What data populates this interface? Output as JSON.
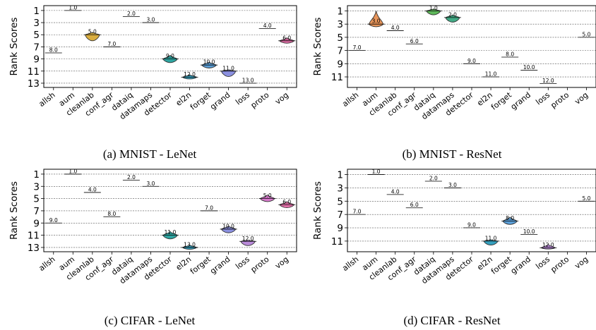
{
  "chart_data": [
    {
      "type": "violin",
      "caption": "(a) MNIST - LeNet",
      "ylabel": "Rank Scores",
      "y_ticks": [
        "1",
        "3",
        "5",
        "7",
        "9",
        "11",
        "13"
      ],
      "ylim": [
        0.2,
        13.7
      ],
      "y_inverted": true,
      "grid": true,
      "categories": [
        "allsh",
        "aum",
        "cleanlab",
        "conf_agr",
        "dataiq",
        "datamaps",
        "detector",
        "el2n",
        "forget",
        "grand",
        "loss",
        "proto",
        "vog"
      ],
      "values": [
        8.0,
        1.0,
        5.0,
        7.0,
        2.0,
        3.0,
        9.0,
        12.0,
        10.0,
        11.0,
        13.0,
        4.0,
        6.0
      ],
      "data_labels": [
        "8.0",
        "1.0",
        "5.0",
        "7.0",
        "2.0",
        "3.0",
        "9.0",
        "12.0",
        "10.0",
        "11.0",
        "13.0",
        "4.0",
        "6.0"
      ],
      "spread": [
        [
          0,
          0
        ],
        [
          0,
          0
        ],
        [
          0.4,
          1.0
        ],
        [
          0,
          0
        ],
        [
          0,
          0
        ],
        [
          0,
          0
        ],
        [
          0.6,
          0.6
        ],
        [
          0.4,
          0.3
        ],
        [
          0.5,
          0.5
        ],
        [
          0.2,
          0.9
        ],
        [
          0,
          0
        ],
        [
          0,
          0
        ],
        [
          0.5,
          0.4
        ]
      ]
    },
    {
      "type": "violin",
      "caption": "(b) MNIST - ResNet",
      "ylabel": "Rank Scores",
      "y_ticks": [
        "1",
        "3",
        "5",
        "7",
        "9",
        "11"
      ],
      "ylim": [
        0.2,
        12.6
      ],
      "y_inverted": true,
      "grid": true,
      "categories": [
        "allsh",
        "aum",
        "cleanlab",
        "conf_agr",
        "dataiq",
        "datamaps",
        "detector",
        "el2n",
        "forget",
        "grand",
        "loss",
        "proto",
        "vog"
      ],
      "values": [
        7.0,
        3.0,
        4.0,
        6.0,
        1.0,
        2.0,
        9.0,
        11.0,
        8.0,
        10.0,
        12.0,
        null,
        5.0
      ],
      "data_labels": [
        "7.0",
        "3.0",
        "4.0",
        "6.0",
        "1.0",
        "2.0",
        "9.0",
        "11.0",
        "8.0",
        "10.0",
        "12.0",
        "",
        "5.0"
      ],
      "spread": [
        [
          0,
          0
        ],
        [
          2.0,
          0.4
        ],
        [
          0,
          0
        ],
        [
          0,
          0
        ],
        [
          0.3,
          0.6
        ],
        [
          0.4,
          0.7
        ],
        [
          0,
          0
        ],
        [
          0,
          0
        ],
        [
          0,
          0
        ],
        [
          0,
          0
        ],
        [
          0,
          0
        ],
        [
          0,
          0
        ],
        [
          0,
          0
        ]
      ]
    },
    {
      "type": "violin",
      "caption": "(c) CIFAR - LeNet",
      "ylabel": "Rank Scores",
      "y_ticks": [
        "1",
        "3",
        "5",
        "7",
        "9",
        "11",
        "13"
      ],
      "ylim": [
        0.2,
        13.7
      ],
      "y_inverted": true,
      "grid": true,
      "categories": [
        "allsh",
        "aum",
        "cleanlab",
        "conf_agr",
        "dataiq",
        "datamaps",
        "detector",
        "el2n",
        "forget",
        "grand",
        "loss",
        "proto",
        "vog"
      ],
      "values": [
        9.0,
        1.0,
        4.0,
        8.0,
        2.0,
        3.0,
        11.0,
        13.0,
        7.0,
        10.0,
        12.0,
        5.0,
        6.0
      ],
      "data_labels": [
        "9.0",
        "1.0",
        "4.0",
        "8.0",
        "2.0",
        "3.0",
        "11.0",
        "13.0",
        "7.0",
        "10.0",
        "12.0",
        "5.0",
        "6.0"
      ],
      "spread": [
        [
          0,
          0
        ],
        [
          0,
          0
        ],
        [
          0,
          0
        ],
        [
          0,
          0
        ],
        [
          0,
          0
        ],
        [
          0,
          0
        ],
        [
          0.6,
          0.6
        ],
        [
          0.4,
          0.3
        ],
        [
          0,
          0
        ],
        [
          0.5,
          0.6
        ],
        [
          0.2,
          0.7
        ],
        [
          0.6,
          0.5
        ],
        [
          0.5,
          0.5
        ]
      ]
    },
    {
      "type": "violin",
      "caption": "(d) CIFAR - ResNet",
      "ylabel": "Rank Scores",
      "y_ticks": [
        "1",
        "3",
        "5",
        "7",
        "9",
        "11"
      ],
      "ylim": [
        0.2,
        12.6
      ],
      "y_inverted": true,
      "grid": true,
      "categories": [
        "allsh",
        "aum",
        "cleanlab",
        "conf_agr",
        "dataiq",
        "datamaps",
        "detector",
        "el2n",
        "forget",
        "grand",
        "loss",
        "proto",
        "vog"
      ],
      "values": [
        7.0,
        1.0,
        4.0,
        6.0,
        2.0,
        3.0,
        9.0,
        11.0,
        8.0,
        10.0,
        12.0,
        null,
        5.0
      ],
      "data_labels": [
        "7.0",
        "1.0",
        "4.0",
        "6.0",
        "2.0",
        "3.0",
        "9.0",
        "11.0",
        "8.0",
        "10.0",
        "12.0",
        "",
        "5.0"
      ],
      "spread": [
        [
          0,
          0
        ],
        [
          0,
          0
        ],
        [
          0,
          0
        ],
        [
          0,
          0
        ],
        [
          0,
          0
        ],
        [
          0,
          0
        ],
        [
          0,
          0
        ],
        [
          0.2,
          0.6
        ],
        [
          0.6,
          0.5
        ],
        [
          0,
          0
        ],
        [
          0.5,
          0.2
        ],
        [
          0,
          0
        ],
        [
          0,
          0
        ]
      ]
    }
  ],
  "colors": {
    "violins": [
      "#e07070",
      "#e8955a",
      "#d9ad3f",
      "#a4b54a",
      "#5eb85a",
      "#42ab86",
      "#2ea4a0",
      "#35a0be",
      "#5b9fd8",
      "#8b90e0",
      "#b98ad9",
      "#d97bce",
      "#e26fa8"
    ]
  }
}
